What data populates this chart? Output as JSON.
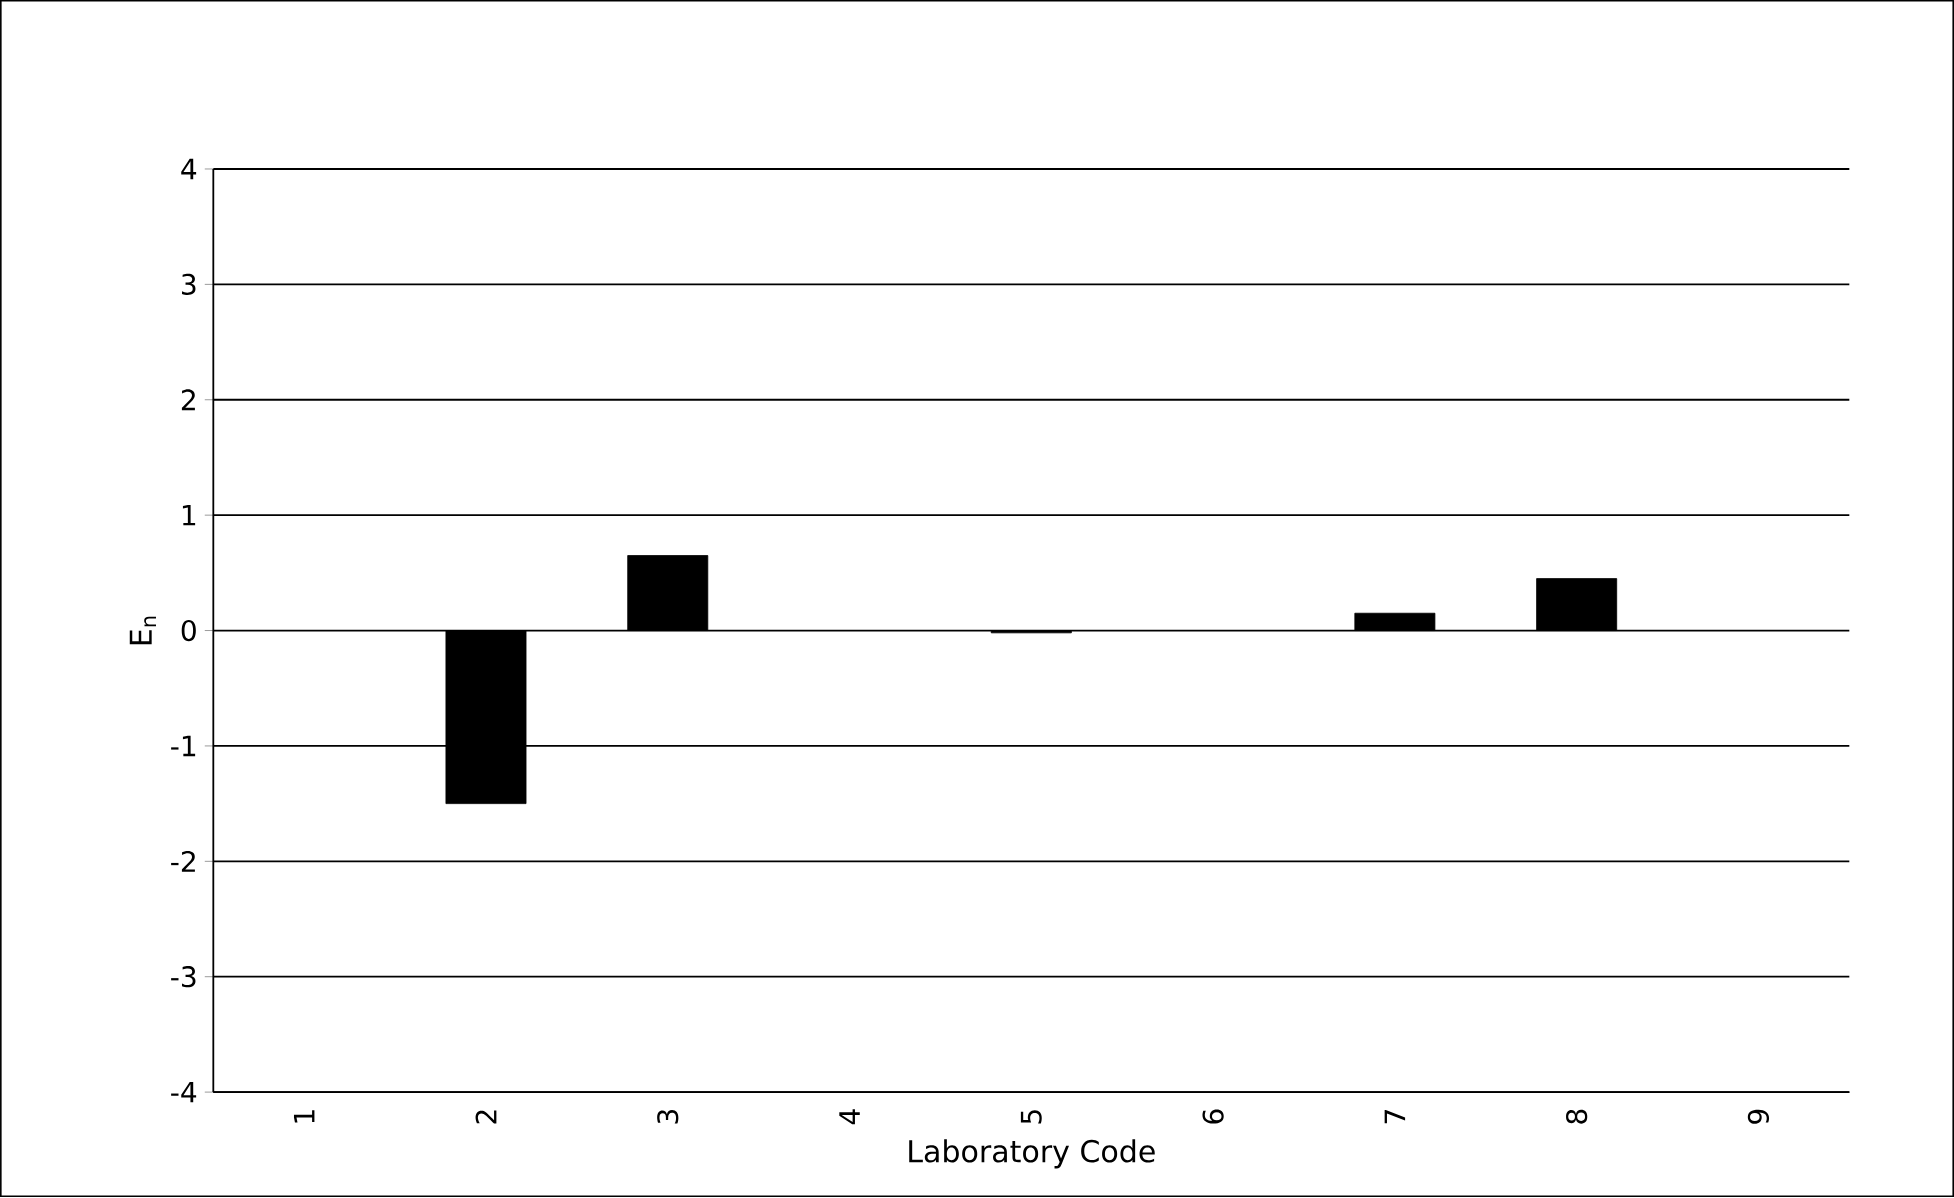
{
  "chart_data": {
    "type": "bar",
    "xlabel": "Laboratory Code",
    "ylabel": "E$_{n}$",
    "categories": [
      "1",
      "2",
      "3",
      "4",
      "5",
      "6",
      "7",
      "8",
      "9"
    ],
    "values": [
      null,
      -1.5,
      0.65,
      null,
      -0.02,
      null,
      0.15,
      0.45,
      null
    ],
    "color": "#000000",
    "ylim": [
      -4,
      4
    ],
    "yticks": [
      -4,
      -3,
      -2,
      -1,
      0,
      1,
      2,
      3,
      4
    ],
    "grid": "y"
  }
}
